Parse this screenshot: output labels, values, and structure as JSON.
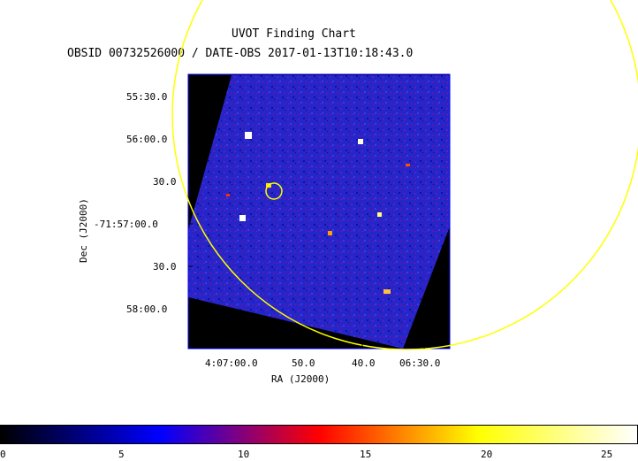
{
  "header": {
    "title": "UVOT Finding Chart",
    "subtitle": "OBSID 00732526000 / DATE-OBS 2017-01-13T10:18:43.0"
  },
  "axes": {
    "xlabel": "RA (J2000)",
    "ylabel": "Dec (J2000)",
    "x_ticks": [
      "4:07:00.0",
      "50.0",
      "40.0",
      "06:30.0"
    ],
    "y_ticks": [
      "55:30.0",
      "56:00.0",
      "30.0",
      "-71:57:00.0",
      "30.0",
      "58:00.0"
    ]
  },
  "colorbar": {
    "ticks": [
      "0",
      "5",
      "10",
      "15",
      "20",
      "25"
    ],
    "colormap": [
      "#000000",
      "#0000ff",
      "#ff0000",
      "#ffff00",
      "#ffffff"
    ],
    "range": [
      0,
      26.2
    ]
  },
  "colors": {
    "image_background": "#2020d0",
    "overlay_circle": "#ffff00",
    "frame": "#0000ff"
  }
}
